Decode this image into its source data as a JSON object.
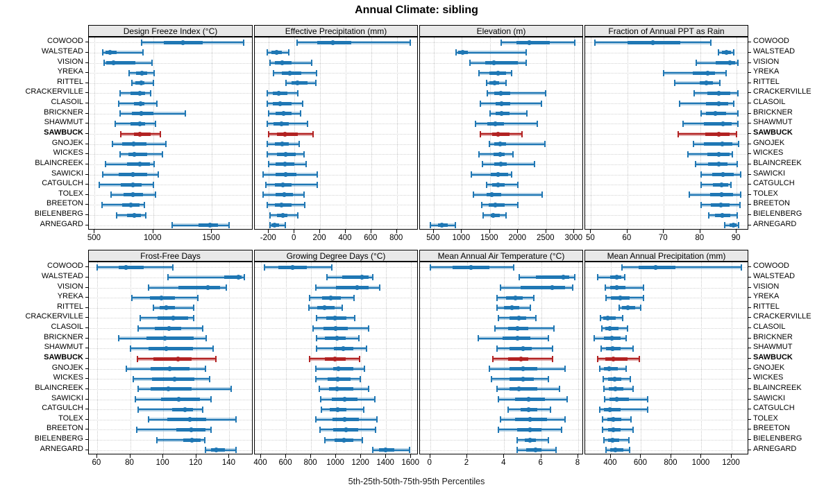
{
  "title": "Annual Climate: sibling",
  "caption": "5th-25th-50th-75th-95th Percentiles",
  "stations": [
    "COWOOD",
    "WALSTEAD",
    "VISION",
    "YREKA",
    "RITTEL",
    "CRACKERVILLE",
    "CLASOIL",
    "BRICKNER",
    "SHAWMUT",
    "SAWBUCK",
    "GNOJEK",
    "WICKES",
    "BLAINCREEK",
    "SAWICKI",
    "CATGULCH",
    "TOLEX",
    "BREETON",
    "BIELENBERG",
    "ARNEGARD"
  ],
  "highlight_station": "SAWBUCK",
  "colors": {
    "series": "#1f77b4",
    "series_band": "rgba(31,119,180,0.33)",
    "highlight": "#b22222",
    "highlight_band": "rgba(178,34,34,0.38)",
    "panel_header_bg": "#e8e8e8",
    "gridline": "#cccccc",
    "border": "#000000"
  },
  "chart_data": {
    "type": "table",
    "note": "5th-25th-50th-75th-95th percentile whisker plots per station, 8 panels",
    "panels": [
      {
        "row": 0,
        "title": "Design Freeze Index (°C)",
        "xmin": 450,
        "xmax": 1855,
        "ticks": [
          500,
          1000,
          1500
        ],
        "values": [
          [
            900,
            1090,
            1255,
            1425,
            1770
          ],
          [
            570,
            595,
            630,
            690,
            915
          ],
          [
            580,
            600,
            660,
            845,
            990
          ],
          [
            795,
            855,
            905,
            950,
            1010
          ],
          [
            815,
            850,
            895,
            925,
            1000
          ],
          [
            715,
            805,
            885,
            930,
            980
          ],
          [
            705,
            835,
            890,
            925,
            1030
          ],
          [
            715,
            815,
            900,
            1000,
            1275
          ],
          [
            675,
            805,
            885,
            930,
            1020
          ],
          [
            725,
            835,
            885,
            980,
            1060
          ],
          [
            650,
            735,
            830,
            945,
            1110
          ],
          [
            715,
            785,
            840,
            950,
            1080
          ],
          [
            590,
            775,
            885,
            970,
            1010
          ],
          [
            570,
            705,
            825,
            950,
            1040
          ],
          [
            540,
            725,
            825,
            900,
            1000
          ],
          [
            640,
            745,
            825,
            915,
            1020
          ],
          [
            560,
            735,
            810,
            885,
            925
          ],
          [
            690,
            775,
            840,
            895,
            935
          ],
          [
            1160,
            1385,
            1485,
            1550,
            1650
          ]
        ]
      },
      {
        "row": 0,
        "title": "Effective Precipitation (mm)",
        "xmin": -310,
        "xmax": 970,
        "ticks": [
          -200,
          0,
          200,
          400,
          600,
          800
        ],
        "values": [
          [
            20,
            180,
            300,
            445,
            905
          ],
          [
            -210,
            -180,
            -140,
            -100,
            -45
          ],
          [
            -190,
            -155,
            -95,
            -25,
            135
          ],
          [
            -165,
            -100,
            -35,
            55,
            170
          ],
          [
            -65,
            -20,
            25,
            100,
            165
          ],
          [
            -215,
            -170,
            -125,
            -55,
            25
          ],
          [
            -215,
            -170,
            -110,
            -20,
            65
          ],
          [
            -200,
            -145,
            -85,
            -25,
            50
          ],
          [
            -215,
            -165,
            -100,
            -45,
            100
          ],
          [
            -200,
            -135,
            -75,
            25,
            145
          ],
          [
            -215,
            -155,
            -95,
            -45,
            35
          ],
          [
            -210,
            -135,
            -70,
            10,
            75
          ],
          [
            -200,
            -145,
            -75,
            0,
            90
          ],
          [
            -245,
            -145,
            -70,
            15,
            180
          ],
          [
            -225,
            -155,
            -90,
            -25,
            180
          ],
          [
            -245,
            -145,
            -80,
            -10,
            75
          ],
          [
            -215,
            -155,
            -100,
            -25,
            80
          ],
          [
            -190,
            -135,
            -90,
            -55,
            25
          ],
          [
            -190,
            -178,
            -158,
            -118,
            -72
          ]
        ]
      },
      {
        "row": 0,
        "title": "Elevation (m)",
        "xmin": 255,
        "xmax": 3170,
        "ticks": [
          500,
          1000,
          1500,
          2000,
          2500,
          3000
        ],
        "values": [
          [
            1695,
            1970,
            2205,
            2560,
            3010
          ],
          [
            900,
            940,
            1015,
            1105,
            2140
          ],
          [
            1145,
            1415,
            1565,
            2000,
            2145
          ],
          [
            1310,
            1495,
            1650,
            1785,
            1885
          ],
          [
            1435,
            1495,
            1585,
            1660,
            1785
          ],
          [
            1455,
            1580,
            1700,
            1865,
            2485
          ],
          [
            1330,
            1600,
            1710,
            1865,
            2420
          ],
          [
            1505,
            1600,
            1710,
            1845,
            2155
          ],
          [
            1240,
            1455,
            1590,
            1745,
            2340
          ],
          [
            1325,
            1535,
            1640,
            1845,
            2070
          ],
          [
            1490,
            1580,
            1680,
            1785,
            2475
          ],
          [
            1300,
            1560,
            1680,
            1765,
            1905
          ],
          [
            1365,
            1580,
            1700,
            1805,
            2290
          ],
          [
            1175,
            1520,
            1640,
            1825,
            1880
          ],
          [
            1435,
            1540,
            1640,
            1765,
            2000
          ],
          [
            1210,
            1435,
            1530,
            1700,
            2435
          ],
          [
            1350,
            1475,
            1590,
            1765,
            2000
          ],
          [
            1375,
            1520,
            1560,
            1680,
            1790
          ],
          [
            435,
            570,
            650,
            755,
            885
          ]
        ]
      },
      {
        "row": 0,
        "title": "Fraction of Annual PPT as Rain",
        "xmin": 48.4,
        "xmax": 93.4,
        "ticks": [
          50,
          60,
          70,
          80,
          90
        ],
        "values": [
          [
            51,
            60,
            67,
            74.5,
            83
          ],
          [
            85,
            86,
            87.2,
            88.5,
            89.2
          ],
          [
            79,
            84.2,
            88.2,
            89.6,
            90.4
          ],
          [
            70,
            78,
            82,
            84,
            87.2
          ],
          [
            73,
            79.8,
            81.6,
            83.5,
            85.4
          ],
          [
            78.3,
            81.9,
            85.2,
            88.3,
            90.4
          ],
          [
            74.3,
            81.6,
            85.1,
            87.7,
            89.2
          ],
          [
            80.2,
            81.6,
            84.2,
            87.2,
            90.4
          ],
          [
            75.3,
            81,
            86.3,
            88.6,
            90.4
          ],
          [
            74,
            81.3,
            85.2,
            88,
            90
          ],
          [
            78.1,
            81,
            86.1,
            88.9,
            90.5
          ],
          [
            76.7,
            81.9,
            85.2,
            88,
            88.9
          ],
          [
            78.8,
            82.1,
            85.1,
            87.5,
            90.1
          ],
          [
            80.3,
            83.2,
            86.3,
            89.2,
            91.1
          ],
          [
            80.2,
            83.5,
            85.9,
            87.7,
            88.5
          ],
          [
            77,
            82.8,
            85.9,
            89.1,
            91.1
          ],
          [
            80.2,
            83,
            85.7,
            88,
            91
          ],
          [
            82.3,
            84,
            86.1,
            88.3,
            90.1
          ],
          [
            86.7,
            88,
            89.1,
            89.9,
            90.5
          ]
        ]
      },
      {
        "row": 1,
        "title": "Frost-Free Days",
        "xmin": 55,
        "xmax": 154.5,
        "ticks": [
          60,
          80,
          100,
          120,
          140
        ],
        "values": [
          [
            60,
            73,
            77.5,
            88,
            106
          ],
          [
            103,
            137,
            145.5,
            147.5,
            149
          ],
          [
            91,
            109,
            127,
            134.5,
            138
          ],
          [
            81,
            92,
            99,
            107,
            121
          ],
          [
            94,
            98,
            102,
            107,
            118.5
          ],
          [
            86,
            96.5,
            106,
            115,
            118.5
          ],
          [
            85,
            95,
            103.5,
            111,
            124
          ],
          [
            73,
            90,
            101,
            118.5,
            126
          ],
          [
            80,
            91,
            102,
            118,
            130
          ],
          [
            84.5,
            94,
            109,
            117,
            132
          ],
          [
            77.5,
            92.5,
            104,
            116,
            125.5
          ],
          [
            82,
            93,
            107,
            119,
            128
          ],
          [
            85,
            92.5,
            103,
            117,
            141
          ],
          [
            83,
            98.5,
            109.5,
            122,
            129
          ],
          [
            85,
            105.5,
            113,
            118,
            124
          ],
          [
            91,
            102.5,
            116,
            126,
            144
          ],
          [
            84,
            108,
            117,
            125.5,
            129
          ],
          [
            96,
            112,
            117.5,
            122.5,
            125
          ],
          [
            125.5,
            129,
            132,
            137.5,
            144
          ]
        ]
      },
      {
        "row": 1,
        "title": "Growing Degree Days (°C)",
        "xmin": 350,
        "xmax": 1660,
        "ticks": [
          400,
          600,
          800,
          1000,
          1200,
          1400,
          1600
        ],
        "values": [
          [
            425,
            540,
            650,
            765,
            965
          ],
          [
            930,
            1050,
            1210,
            1260,
            1295
          ],
          [
            840,
            1000,
            1170,
            1260,
            1350
          ],
          [
            790,
            890,
            960,
            1040,
            1145
          ],
          [
            785,
            850,
            910,
            990,
            1050
          ],
          [
            845,
            920,
            990,
            1085,
            1150
          ],
          [
            815,
            900,
            995,
            1095,
            1260
          ],
          [
            845,
            910,
            1005,
            1075,
            1185
          ],
          [
            845,
            985,
            1060,
            1140,
            1245
          ],
          [
            790,
            910,
            990,
            1075,
            1190
          ],
          [
            840,
            975,
            1020,
            1140,
            1225
          ],
          [
            840,
            935,
            1015,
            1115,
            1195
          ],
          [
            865,
            945,
            1010,
            1140,
            1260
          ],
          [
            875,
            965,
            1070,
            1170,
            1310
          ],
          [
            885,
            950,
            1015,
            1085,
            1220
          ],
          [
            840,
            970,
            1070,
            1180,
            1325
          ],
          [
            870,
            980,
            1080,
            1175,
            1315
          ],
          [
            910,
            990,
            1063,
            1140,
            1210
          ],
          [
            1295,
            1345,
            1395,
            1465,
            1590
          ]
        ]
      },
      {
        "row": 1,
        "title": "Mean Annual Air Temperature (°C)",
        "xmin": -0.55,
        "xmax": 8.3,
        "ticks": [
          0,
          2,
          4,
          6,
          8
        ],
        "values": [
          [
            0,
            1.2,
            2.2,
            3.2,
            4.5
          ],
          [
            4.8,
            5.7,
            7.2,
            7.5,
            7.8
          ],
          [
            3.8,
            4.9,
            6.6,
            7.3,
            7.7
          ],
          [
            3.6,
            4.1,
            4.6,
            5.0,
            5.6
          ],
          [
            3.6,
            4.0,
            4.4,
            4.8,
            5.4
          ],
          [
            3.7,
            4.3,
            4.8,
            5.2,
            5.7
          ],
          [
            3.5,
            4.2,
            4.7,
            5.3,
            6.7
          ],
          [
            2.6,
            3.9,
            4.7,
            5.4,
            6.4
          ],
          [
            3.6,
            4.3,
            5.0,
            5.5,
            6.6
          ],
          [
            3.4,
            4.2,
            4.9,
            5.3,
            6.6
          ],
          [
            3.2,
            4.3,
            5.0,
            5.8,
            7.3
          ],
          [
            3.3,
            4.3,
            5.0,
            5.6,
            6.4
          ],
          [
            3.6,
            4.3,
            4.8,
            5.8,
            7.0
          ],
          [
            3.7,
            4.6,
            5.3,
            6.2,
            7.4
          ],
          [
            4.2,
            4.9,
            5.3,
            5.8,
            6.5
          ],
          [
            3.8,
            4.6,
            5.4,
            6.3,
            7.3
          ],
          [
            3.7,
            4.7,
            5.4,
            6.0,
            7.1
          ],
          [
            4.7,
            5.1,
            5.4,
            5.7,
            6.4
          ],
          [
            4.7,
            5.2,
            5.7,
            6.0,
            6.8
          ]
        ]
      },
      {
        "row": 1,
        "title": "Mean Annual Precipitation (mm)",
        "xmin": 230,
        "xmax": 1315,
        "ticks": [
          400,
          600,
          800,
          1000,
          1200
        ],
        "values": [
          [
            475,
            585,
            695,
            830,
            1265
          ],
          [
            315,
            395,
            440,
            470,
            490
          ],
          [
            365,
            395,
            440,
            495,
            615
          ],
          [
            370,
            400,
            460,
            525,
            615
          ],
          [
            455,
            475,
            515,
            560,
            600
          ],
          [
            330,
            350,
            380,
            432,
            480
          ],
          [
            340,
            365,
            395,
            450,
            510
          ],
          [
            290,
            355,
            405,
            465,
            500
          ],
          [
            335,
            370,
            412,
            465,
            545
          ],
          [
            315,
            365,
            417,
            510,
            590
          ],
          [
            325,
            355,
            390,
            447,
            500
          ],
          [
            350,
            380,
            425,
            470,
            530
          ],
          [
            355,
            385,
            428,
            485,
            545
          ],
          [
            360,
            390,
            437,
            520,
            645
          ],
          [
            325,
            355,
            395,
            463,
            645
          ],
          [
            345,
            375,
            417,
            470,
            535
          ],
          [
            345,
            380,
            417,
            465,
            545
          ],
          [
            355,
            380,
            410,
            455,
            520
          ],
          [
            370,
            395,
            432,
            485,
            525
          ]
        ]
      }
    ]
  }
}
